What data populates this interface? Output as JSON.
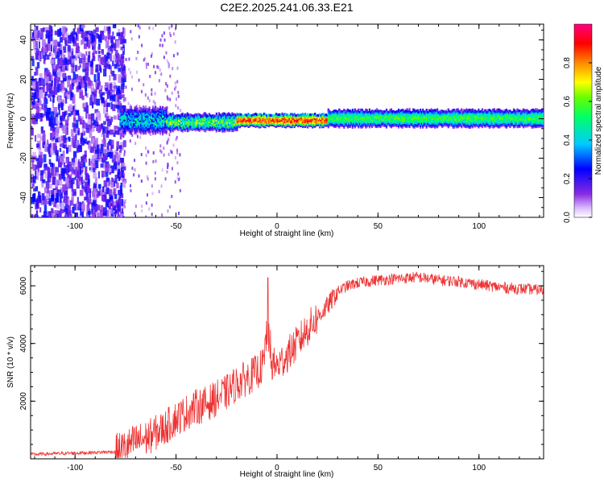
{
  "title": "C2E2.2025.241.06.33.E21",
  "colors": {
    "snr_line": "#ee3333",
    "axis": "#000000",
    "background": "#ffffff"
  },
  "chart_data": [
    {
      "type": "heatmap",
      "title": "C2E2.2025.241.06.33.E21",
      "xlabel": "Height of straight line (km)",
      "ylabel": "Frequency (Hz)",
      "xlim": [
        -122,
        132
      ],
      "ylim": [
        -50,
        48
      ],
      "xticks": [
        -100,
        -50,
        0,
        50,
        100
      ],
      "yticks": [
        -40,
        -20,
        0,
        20,
        40
      ],
      "colorbar": {
        "label": "Normalized spectral amplitude",
        "range": [
          0,
          1
        ],
        "ticks": [
          0.0,
          0.2,
          0.4,
          0.6,
          0.8
        ],
        "tick_labels": [
          "0.0",
          "0.2",
          "0.4",
          "0.6",
          "0.8"
        ],
        "colormap": "rainbow (white→violet→blue→cyan→green→yellow→red→magenta)"
      },
      "regions": [
        {
          "x_range": [
            -122,
            -78
          ],
          "freq_range": [
            -50,
            48
          ],
          "amplitude": "0.1-0.3",
          "note": "scattered noise"
        },
        {
          "x_range": [
            -78,
            -55
          ],
          "freq_center": 0,
          "half_width": 6,
          "amplitude": "0.2-0.5"
        },
        {
          "x_range": [
            -55,
            -20
          ],
          "freq_center": -1,
          "half_width": 4,
          "amplitude": "0.3-0.7"
        },
        {
          "x_range": [
            -20,
            25
          ],
          "freq_center": 0,
          "half_width": 3,
          "amplitude": "0.7-0.95"
        },
        {
          "x_range": [
            25,
            132
          ],
          "freq_center": 1,
          "half_width": 4,
          "amplitude": "0.4-0.6"
        }
      ]
    },
    {
      "type": "line",
      "title": "",
      "xlabel": "Height of straight line (km)",
      "ylabel": "SNR (10 * v/v)",
      "xlim": [
        -122,
        132
      ],
      "ylim": [
        0,
        6700
      ],
      "xticks": [
        -100,
        -50,
        0,
        50,
        100
      ],
      "yticks": [
        2000,
        4000,
        6000
      ],
      "series": [
        {
          "name": "SNR",
          "x": [
            -122,
            -110,
            -100,
            -90,
            -80,
            -75,
            -70,
            -65,
            -60,
            -55,
            -50,
            -45,
            -40,
            -35,
            -30,
            -25,
            -20,
            -15,
            -10,
            -5,
            0,
            5,
            10,
            15,
            20,
            25,
            30,
            35,
            40,
            50,
            60,
            70,
            80,
            90,
            100,
            110,
            120,
            132
          ],
          "values": [
            150,
            180,
            200,
            220,
            250,
            400,
            600,
            700,
            900,
            1100,
            1400,
            1600,
            1800,
            1900,
            2100,
            2300,
            2600,
            2800,
            3000,
            3400,
            3200,
            3600,
            4000,
            4500,
            4900,
            5300,
            5800,
            6000,
            6100,
            6200,
            6250,
            6300,
            6200,
            6150,
            6050,
            5950,
            5900,
            5850
          ]
        }
      ],
      "annotations": [
        {
          "x": -4,
          "value": 6150,
          "label": "spike"
        }
      ]
    }
  ]
}
